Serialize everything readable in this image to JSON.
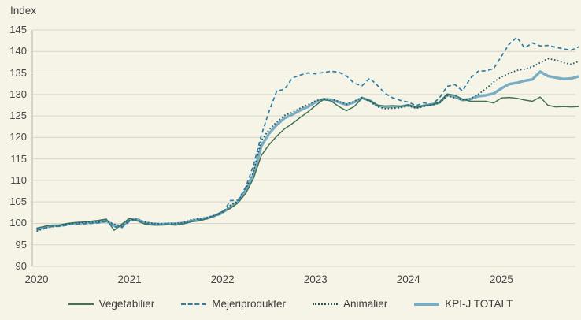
{
  "colors": {
    "background": "#f6f3e7",
    "gridline": "#d8d5c8",
    "axis": "#c2bfb1",
    "text": "#3f3f3f"
  },
  "chart_data": {
    "type": "line",
    "y_axis_title": "Index",
    "frequency": "monthly",
    "x_start": "2020-01",
    "x_end": "2025-11",
    "x_tick_labels": [
      "2020",
      "2021",
      "2022",
      "2023",
      "2024",
      "2025"
    ],
    "y_ticks": [
      90,
      95,
      100,
      105,
      110,
      115,
      120,
      125,
      130,
      135,
      140,
      145
    ],
    "ylim": [
      90,
      145
    ],
    "grid": "horizontal",
    "legend_position": "bottom",
    "draw_order": [
      "kpi_j_totalt",
      "vegetabilier",
      "animalier",
      "mejeriprodukter"
    ],
    "series": [
      {
        "id": "vegetabilier",
        "name": "Vegetabilier",
        "color": "#3f7355",
        "style": "solid",
        "width": 1.5,
        "values": [
          98.9,
          99.3,
          99.6,
          99.6,
          100.0,
          100.2,
          100.3,
          100.5,
          100.7,
          101.0,
          98.4,
          99.8,
          101.2,
          100.6,
          99.8,
          99.6,
          99.6,
          99.7,
          99.6,
          99.9,
          100.4,
          100.6,
          101.1,
          101.8,
          102.8,
          103.5,
          104.8,
          107.0,
          110.5,
          115.8,
          118.3,
          120.3,
          122.0,
          123.2,
          124.6,
          125.9,
          127.4,
          128.8,
          128.5,
          127.2,
          126.2,
          127.2,
          129.1,
          128.6,
          127.5,
          127.3,
          127.4,
          127.2,
          127.6,
          127.0,
          127.4,
          127.6,
          128.2,
          130.1,
          129.8,
          128.9,
          128.4,
          128.4,
          128.4,
          128.0,
          129.2,
          129.3,
          129.1,
          128.7,
          128.4,
          129.4,
          127.5,
          127.1,
          127.2,
          127.1,
          127.2
        ]
      },
      {
        "id": "mejeriprodukter",
        "name": "Mejeriprodukter",
        "color": "#2d7da6",
        "style": "dashed",
        "width": 1.7,
        "values": [
          98.4,
          98.9,
          99.3,
          99.3,
          99.6,
          99.8,
          99.9,
          100.0,
          100.1,
          100.4,
          99.2,
          99.0,
          100.5,
          100.8,
          100.0,
          99.8,
          99.7,
          99.9,
          99.8,
          100.0,
          100.5,
          100.9,
          101.3,
          101.7,
          102.3,
          105.3,
          105.4,
          108.5,
          113.5,
          120.5,
          126.0,
          130.8,
          131.2,
          133.8,
          134.5,
          135.0,
          134.8,
          135.1,
          135.4,
          135.2,
          134.3,
          132.6,
          132.0,
          133.8,
          132.1,
          130.2,
          129.2,
          128.6,
          128.2,
          127.4,
          128.1,
          127.6,
          129.2,
          131.9,
          132.3,
          130.8,
          133.8,
          135.4,
          135.5,
          136.0,
          138.9,
          141.7,
          143.3,
          140.8,
          142.0,
          141.3,
          141.4,
          141.0,
          140.6,
          140.3,
          141.1
        ]
      },
      {
        "id": "animalier",
        "name": "Animalier",
        "color": "#215761",
        "style": "dotted",
        "width": 1.8,
        "values": [
          98.2,
          98.8,
          99.2,
          99.5,
          99.9,
          100.1,
          100.2,
          100.3,
          100.4,
          100.6,
          99.8,
          99.4,
          100.7,
          101.0,
          100.3,
          100.0,
          99.9,
          100.0,
          100.0,
          100.2,
          100.9,
          101.1,
          101.4,
          101.9,
          102.6,
          104.2,
          105.2,
          108.0,
          112.0,
          119.3,
          121.8,
          123.6,
          125.1,
          125.8,
          126.8,
          127.6,
          128.5,
          129.0,
          128.9,
          128.4,
          127.7,
          128.4,
          129.3,
          128.4,
          127.1,
          126.7,
          126.8,
          126.9,
          127.3,
          126.8,
          127.2,
          127.5,
          128.0,
          129.7,
          129.2,
          128.7,
          129.0,
          130.0,
          131.3,
          132.9,
          134.1,
          134.9,
          135.6,
          135.9,
          136.4,
          137.4,
          138.3,
          138.0,
          137.4,
          137.0,
          137.7
        ]
      },
      {
        "id": "kpi_j_totalt",
        "name": "KPI-J TOTALT",
        "color": "#79adc4",
        "style": "thick",
        "width": 3.4,
        "values": [
          98.6,
          99.1,
          99.4,
          99.5,
          99.8,
          100.0,
          100.1,
          100.2,
          100.3,
          100.6,
          99.5,
          99.3,
          100.8,
          100.9,
          100.1,
          99.9,
          99.8,
          99.9,
          99.9,
          100.1,
          100.6,
          100.9,
          101.2,
          101.8,
          102.6,
          103.7,
          105.0,
          107.7,
          111.3,
          118.0,
          120.9,
          122.9,
          124.5,
          125.3,
          126.3,
          127.1,
          128.2,
          128.9,
          128.8,
          128.2,
          127.6,
          128.2,
          129.2,
          128.6,
          127.4,
          127.1,
          127.2,
          127.2,
          127.5,
          127.0,
          127.4,
          127.7,
          128.1,
          129.9,
          129.4,
          128.7,
          128.9,
          129.6,
          129.8,
          130.2,
          131.4,
          132.4,
          132.7,
          133.2,
          133.5,
          135.3,
          134.3,
          133.9,
          133.6,
          133.7,
          134.2
        ]
      }
    ]
  }
}
